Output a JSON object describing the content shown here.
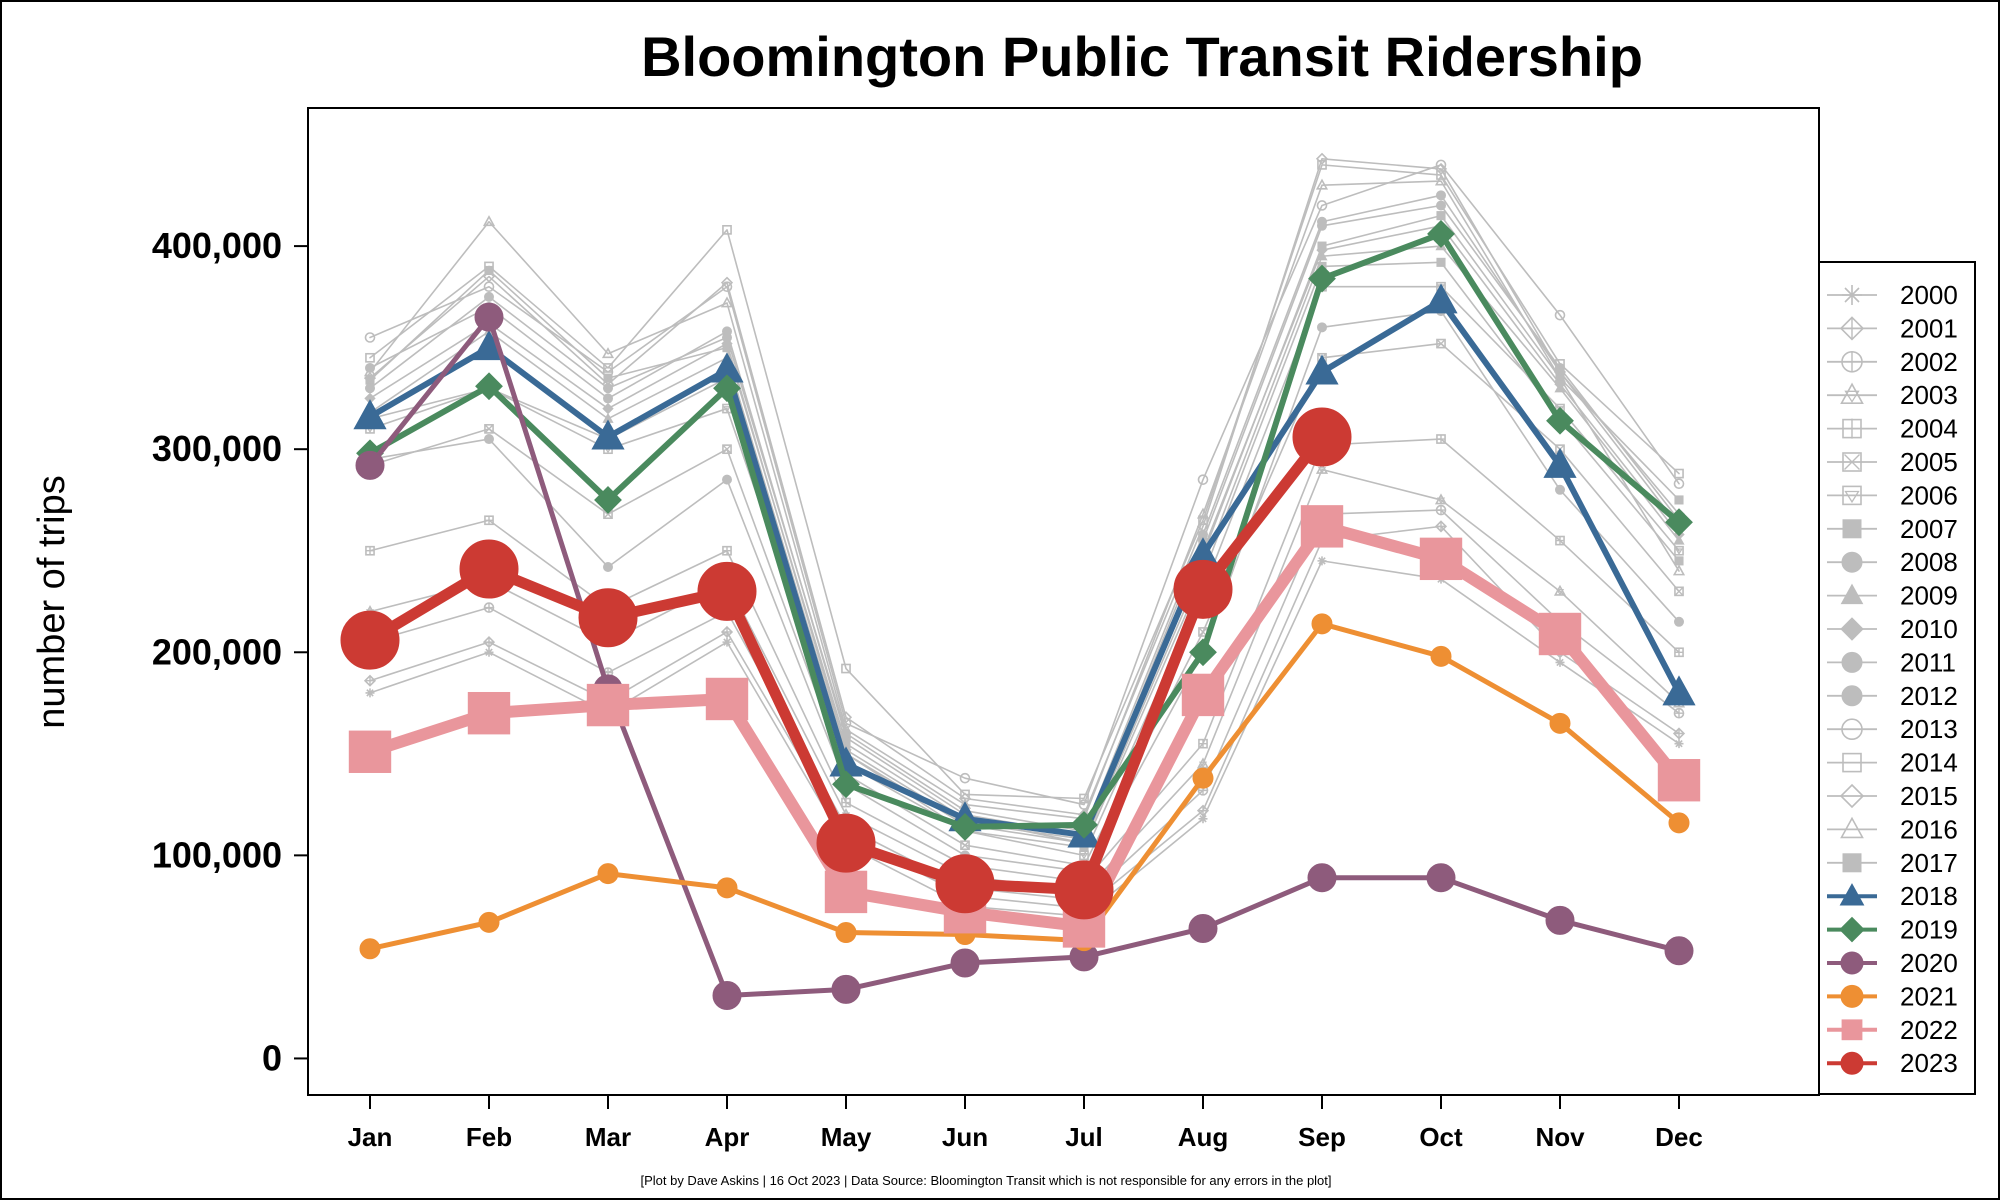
{
  "chart_data": {
    "type": "line",
    "title": "Bloomington Public Transit Ridership",
    "ylabel": "number of trips",
    "xlabel": "",
    "ylim": [
      -18000,
      468000
    ],
    "yticks": [
      0,
      100000,
      200000,
      300000,
      400000
    ],
    "ytick_labels": [
      "0",
      "100,000",
      "200,000",
      "300,000",
      "400,000"
    ],
    "categories": [
      "Jan",
      "Feb",
      "Mar",
      "Apr",
      "May",
      "Jun",
      "Jul",
      "Aug",
      "Sep",
      "Oct",
      "Nov",
      "Dec"
    ],
    "legend_position": "right",
    "footnote": "[Plot by Dave Askins | 16 Oct 2023 | Data Source: Bloomington Transit which is not responsible for any errors in the plot]",
    "series": [
      {
        "name": "2000",
        "color": "#bdbdbd",
        "marker": "asterisk",
        "emphasis": false,
        "values": [
          180000,
          200000,
          170000,
          205000,
          105000,
          75000,
          70000,
          118000,
          245000,
          236000,
          195000,
          155000
        ]
      },
      {
        "name": "2001",
        "color": "#bdbdbd",
        "marker": "diamond-plus",
        "emphasis": false,
        "values": [
          186000,
          205000,
          176000,
          210000,
          110000,
          80000,
          74000,
          122000,
          255000,
          262000,
          200000,
          160000
        ]
      },
      {
        "name": "2002",
        "color": "#bdbdbd",
        "marker": "circle-plus",
        "emphasis": false,
        "values": [
          205000,
          222000,
          190000,
          220000,
          114000,
          84000,
          78000,
          132000,
          268000,
          270000,
          215000,
          170000
        ]
      },
      {
        "name": "2003",
        "color": "#bdbdbd",
        "marker": "triangle-star",
        "emphasis": false,
        "values": [
          220000,
          235000,
          205000,
          235000,
          120000,
          90000,
          82000,
          145000,
          290000,
          275000,
          230000,
          175000
        ]
      },
      {
        "name": "2004",
        "color": "#bdbdbd",
        "marker": "square-plus",
        "emphasis": false,
        "values": [
          250000,
          265000,
          222000,
          250000,
          126000,
          95000,
          87000,
          155000,
          302000,
          305000,
          255000,
          200000
        ]
      },
      {
        "name": "2005",
        "color": "#bdbdbd",
        "marker": "square-x",
        "emphasis": false,
        "values": [
          292000,
          310000,
          268000,
          300000,
          140000,
          105000,
          95000,
          210000,
          345000,
          352000,
          300000,
          230000
        ]
      },
      {
        "name": "2006",
        "color": "#bdbdbd",
        "marker": "square-triangle",
        "emphasis": false,
        "values": [
          310000,
          330000,
          300000,
          320000,
          150000,
          112000,
          100000,
          230000,
          380000,
          380000,
          320000,
          250000
        ]
      },
      {
        "name": "2007",
        "color": "#bdbdbd",
        "marker": "square",
        "emphasis": false,
        "values": [
          334000,
          388000,
          335000,
          350000,
          155000,
          118000,
          106000,
          248000,
          400000,
          415000,
          335000,
          275000
        ]
      },
      {
        "name": "2008",
        "color": "#bdbdbd",
        "marker": "circle",
        "emphasis": false,
        "values": [
          340000,
          370000,
          325000,
          358000,
          158000,
          120000,
          110000,
          255000,
          410000,
          420000,
          340000,
          265000
        ]
      },
      {
        "name": "2009",
        "color": "#bdbdbd",
        "marker": "triangle",
        "emphasis": false,
        "values": [
          318000,
          358000,
          315000,
          345000,
          150000,
          115000,
          106000,
          242000,
          395000,
          400000,
          330000,
          255000
        ]
      },
      {
        "name": "2010",
        "color": "#bdbdbd",
        "marker": "diamond",
        "emphasis": false,
        "values": [
          325000,
          362000,
          320000,
          352000,
          152000,
          116000,
          108000,
          250000,
          398000,
          410000,
          332000,
          258000
        ]
      },
      {
        "name": "2011",
        "color": "#bdbdbd",
        "marker": "circle",
        "emphasis": false,
        "values": [
          330000,
          375000,
          330000,
          355000,
          160000,
          122000,
          112000,
          258000,
          412000,
          425000,
          338000,
          262000
        ]
      },
      {
        "name": "2012",
        "color": "#bdbdbd",
        "marker": "circle",
        "emphasis": false,
        "values": [
          295000,
          305000,
          242000,
          285000,
          135000,
          100000,
          92000,
          200000,
          360000,
          368000,
          280000,
          215000
        ]
      },
      {
        "name": "2013",
        "color": "#bdbdbd",
        "marker": "circle-open",
        "emphasis": false,
        "values": [
          355000,
          380000,
          338000,
          380000,
          165000,
          138000,
          125000,
          285000,
          420000,
          440000,
          366000,
          283000
        ]
      },
      {
        "name": "2014",
        "color": "#bdbdbd",
        "marker": "square-open",
        "emphasis": false,
        "values": [
          345000,
          390000,
          340000,
          408000,
          192000,
          130000,
          128000,
          265000,
          440000,
          435000,
          342000,
          288000
        ]
      },
      {
        "name": "2015",
        "color": "#bdbdbd",
        "marker": "diamond-open",
        "emphasis": false,
        "values": [
          335000,
          385000,
          332000,
          382000,
          168000,
          128000,
          120000,
          262000,
          443000,
          438000,
          338000,
          268000
        ]
      },
      {
        "name": "2016",
        "color": "#bdbdbd",
        "marker": "triangle-open",
        "emphasis": false,
        "values": [
          338000,
          412000,
          347000,
          372000,
          162000,
          125000,
          118000,
          268000,
          430000,
          432000,
          335000,
          240000
        ]
      },
      {
        "name": "2017",
        "color": "#bdbdbd",
        "marker": "square",
        "emphasis": false,
        "values": [
          315000,
          330000,
          305000,
          335000,
          145000,
          112000,
          104000,
          238000,
          390000,
          392000,
          315000,
          245000
        ]
      },
      {
        "name": "2018",
        "color": "#3a6a96",
        "marker": "triangle",
        "emphasis": true,
        "values": [
          316000,
          350000,
          306000,
          339000,
          145000,
          118000,
          110000,
          248000,
          338000,
          373000,
          292000,
          180000
        ]
      },
      {
        "name": "2019",
        "color": "#4a8a5e",
        "marker": "diamond",
        "emphasis": true,
        "values": [
          298000,
          331000,
          275000,
          330000,
          135000,
          114000,
          115000,
          200000,
          384000,
          406000,
          314000,
          264000
        ]
      },
      {
        "name": "2020",
        "color": "#8e5b7c",
        "marker": "circle",
        "emphasis": true,
        "values": [
          292000,
          365000,
          182000,
          31000,
          34000,
          47000,
          50000,
          64000,
          89000,
          89000,
          68000,
          53000
        ]
      },
      {
        "name": "2021",
        "color": "#ee8f33",
        "marker": "circle",
        "emphasis": true,
        "values": [
          54000,
          67000,
          91000,
          84000,
          62000,
          61000,
          58000,
          138000,
          214000,
          198000,
          165000,
          116000
        ]
      },
      {
        "name": "2022",
        "color": "#e9969c",
        "marker": "square",
        "emphasis": true,
        "values": [
          151000,
          170000,
          174000,
          177000,
          82000,
          72000,
          65000,
          179000,
          262000,
          246000,
          209000,
          137000
        ]
      },
      {
        "name": "2023",
        "color": "#cc3a33",
        "marker": "circle",
        "emphasis": true,
        "values": [
          206000,
          241000,
          217000,
          230000,
          106000,
          86000,
          83000,
          231000,
          306000,
          null,
          null,
          null
        ]
      }
    ]
  }
}
